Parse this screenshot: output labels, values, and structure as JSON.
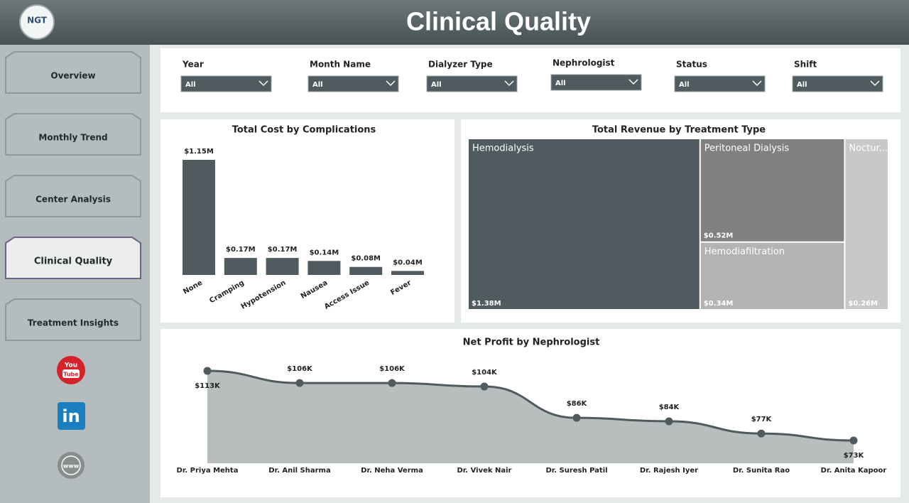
{
  "header": {
    "title": "Clinical Quality",
    "logo": "NGT"
  },
  "nav": {
    "items": [
      "Overview",
      "Monthly Trend",
      "Center Analysis",
      "Clinical Quality",
      "Treatment Insights"
    ],
    "active": 3
  },
  "icons": {
    "youtube": [
      "You",
      "Tube"
    ],
    "linkedin": "in",
    "web": "www"
  },
  "filters": [
    {
      "label": "Year",
      "value": "All"
    },
    {
      "label": "Month Name",
      "value": "All"
    },
    {
      "label": "Dialyzer Type",
      "value": "All"
    },
    {
      "label": "Nephrologist",
      "value": "All"
    },
    {
      "label": "Status",
      "value": "All"
    },
    {
      "label": "Shift",
      "value": "All"
    }
  ],
  "chart_data": [
    {
      "type": "bar",
      "title": "Total Cost by Complications",
      "categories": [
        "None",
        "Cramping",
        "Hypotension",
        "Nausea",
        "Access Issue",
        "Fever"
      ],
      "values": [
        1.15,
        0.17,
        0.17,
        0.14,
        0.08,
        0.04
      ],
      "value_labels": [
        "$1.15M",
        "$0.17M",
        "$0.17M",
        "$0.14M",
        "$0.08M",
        "$0.04M"
      ],
      "color": "#4f5b5e"
    },
    {
      "type": "treemap",
      "title": "Total Revenue by Treatment Type",
      "categories": [
        "Hemodialysis",
        "Peritoneal Dialysis",
        "Hemodiafiltration",
        "Noctur..."
      ],
      "values": [
        1.38,
        0.52,
        0.34,
        0.26
      ],
      "value_labels": [
        "$1.38M",
        "$0.52M",
        "$0.34M",
        "$0.26M"
      ],
      "colors": [
        "#4f5b5e",
        "#808080",
        "#b3b3b3",
        "#c8c8c8"
      ]
    },
    {
      "type": "area",
      "title": "Net Profit by Nephrologist",
      "categories": [
        "Dr. Priya Mehta",
        "Dr. Anil Sharma",
        "Dr. Neha Verma",
        "Dr. Vivek Nair",
        "Dr. Suresh Patil",
        "Dr. Rajesh Iyer",
        "Dr. Sunita Rao",
        "Dr. Anita Kapoor"
      ],
      "values": [
        113,
        106,
        106,
        104,
        86,
        84,
        77,
        73
      ],
      "value_labels": [
        "$113K",
        "$106K",
        "$106K",
        "$104K",
        "$86K",
        "$84K",
        "$77K",
        "$73K"
      ],
      "color": "#4f5b5e",
      "fill": "#b8bdbe"
    }
  ]
}
